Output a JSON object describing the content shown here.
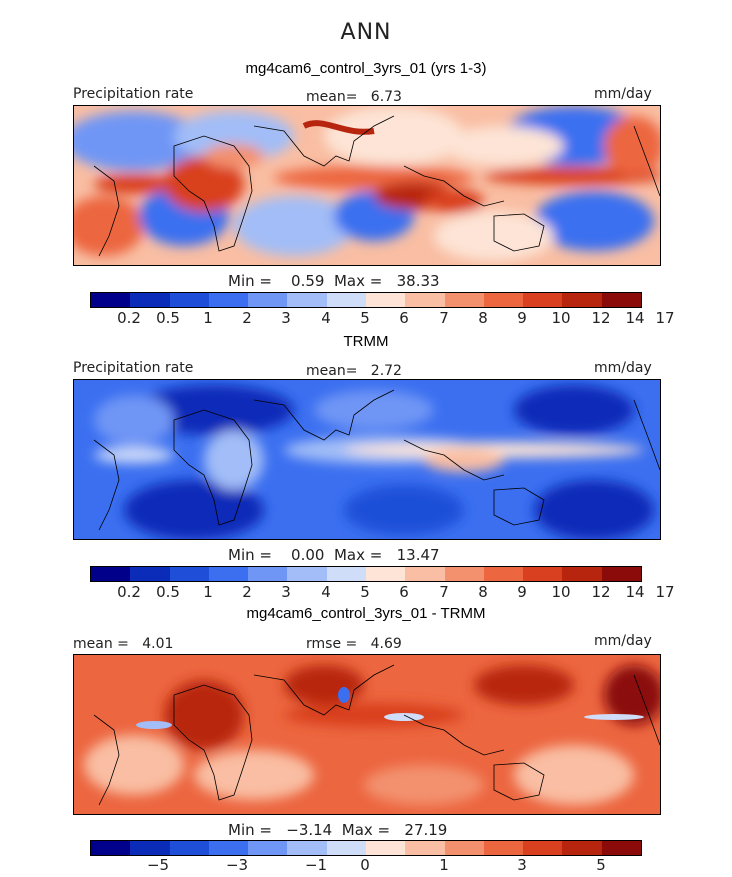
{
  "figure_title": "ANN",
  "panels": [
    {
      "title": "mg4cam6_control_3yrs_01 (yrs 1-3)",
      "left_label": "Precipitation rate",
      "center_label": "mean=   6.73",
      "right_label": "mm/day",
      "minmax": "Min =    0.59  Max =   38.33",
      "colorbar_labels": [
        "0.2",
        "0.5",
        "1",
        "2",
        "3",
        "4",
        "5",
        "6",
        "7",
        "8",
        "9",
        "10",
        "12",
        "14",
        "17"
      ]
    },
    {
      "title": "TRMM",
      "left_label": "Precipitation rate",
      "center_label": "mean=   2.72",
      "right_label": "mm/day",
      "minmax": "Min =    0.00  Max =   13.47",
      "colorbar_labels": [
        "0.2",
        "0.5",
        "1",
        "2",
        "3",
        "4",
        "5",
        "6",
        "7",
        "8",
        "9",
        "10",
        "12",
        "14",
        "17"
      ]
    },
    {
      "title": "mg4cam6_control_3yrs_01 - TRMM",
      "left_label": "mean =   4.01",
      "center_label": "rmse =   4.69",
      "right_label": "mm/day",
      "minmax": "Min =   −3.14  Max =   27.19",
      "colorbar_labels": [
        "−5",
        "−3",
        "−1",
        "0",
        "1",
        "3",
        "5"
      ]
    }
  ],
  "colorbar_colors": [
    "#00008b",
    "#0a2cb8",
    "#1f4fd8",
    "#3b6ff0",
    "#6f96f5",
    "#a2bdf7",
    "#d0ddf9",
    "#fde4d6",
    "#f9bea3",
    "#f3916e",
    "#ec6640",
    "#d9401f",
    "#b8250f",
    "#8b0a0a"
  ]
}
